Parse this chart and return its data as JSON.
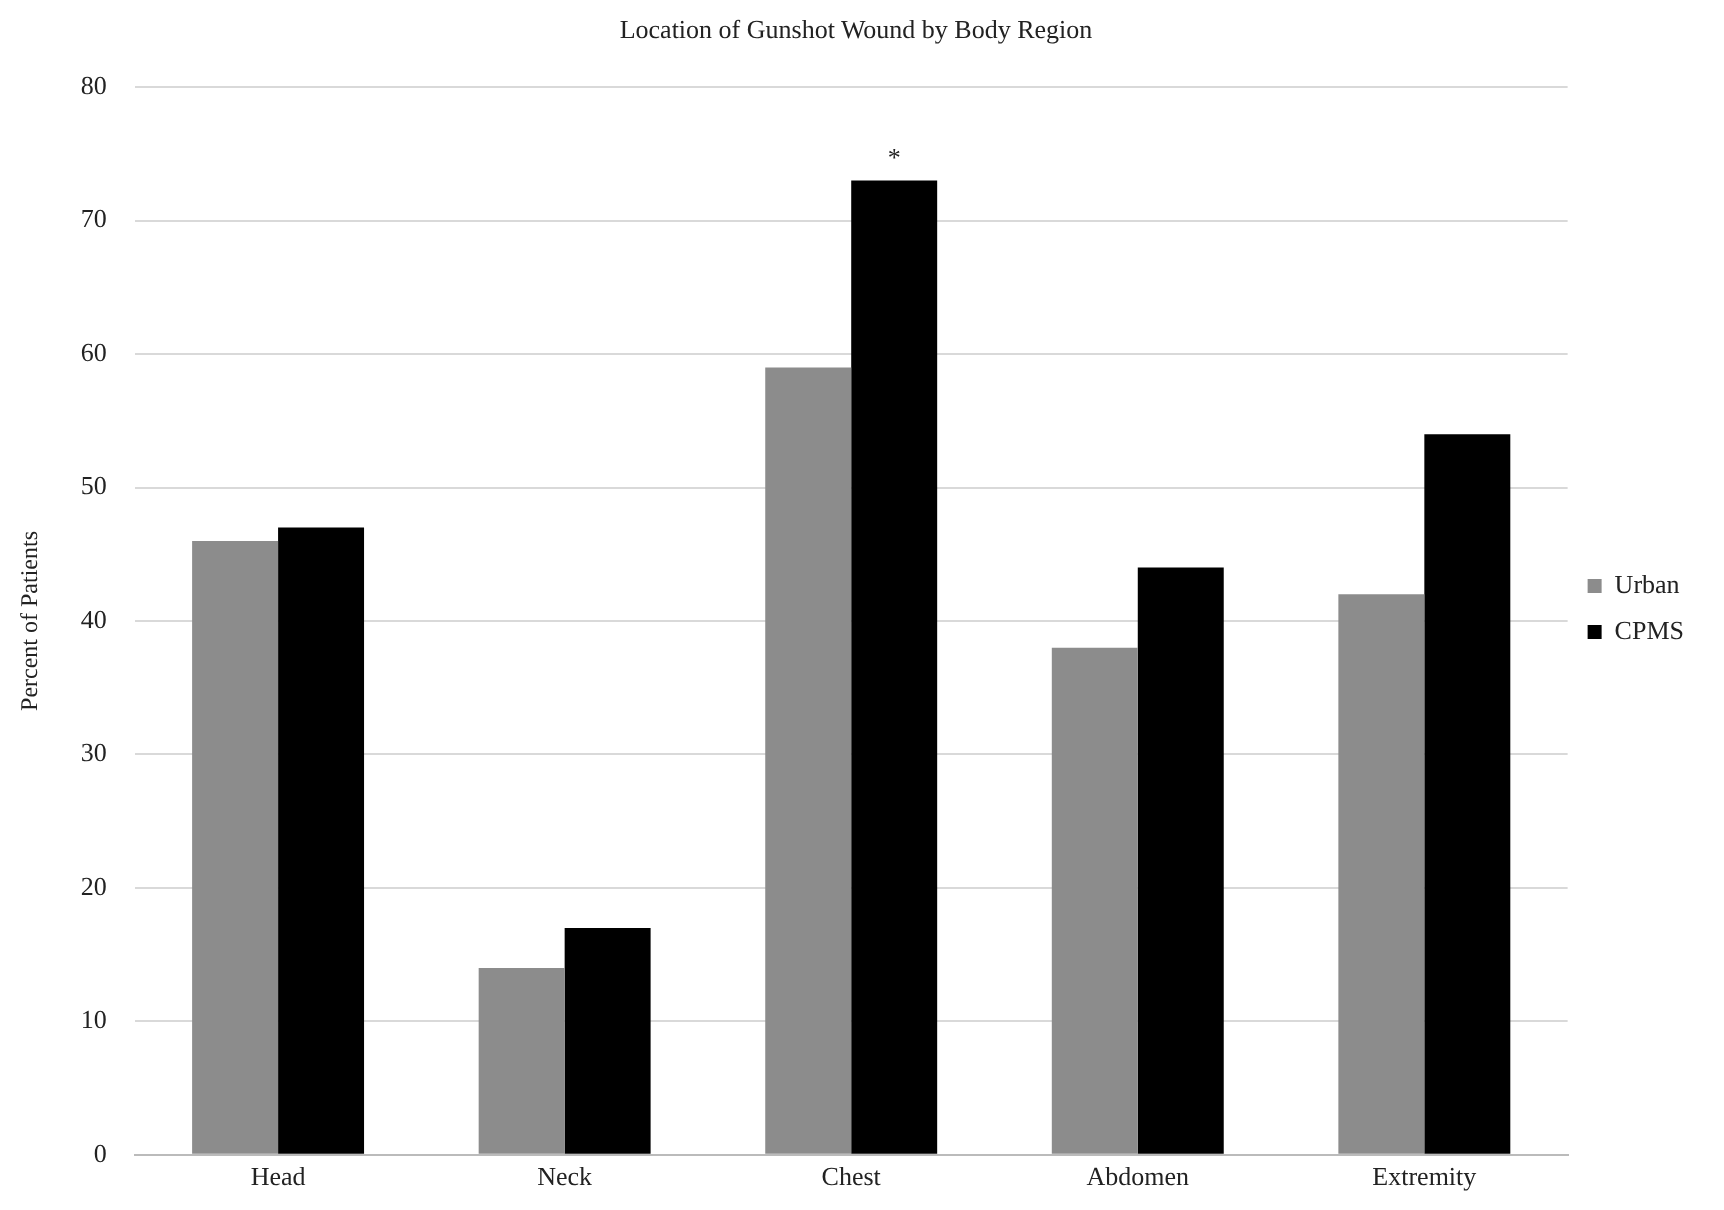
{
  "chart_data": {
    "type": "bar",
    "title": "Location of Gunshot Wound by Body Region",
    "ylabel": "Percent of Patients",
    "categories": [
      "Head",
      "Neck",
      "Chest",
      "Abdomen",
      "Extremity"
    ],
    "series": [
      {
        "name": "Urban",
        "color": "#8c8c8c",
        "values": [
          46,
          14,
          59,
          38,
          42
        ]
      },
      {
        "name": "CPMS",
        "color": "#000000",
        "values": [
          47,
          17,
          73,
          44,
          54
        ]
      }
    ],
    "ylim": [
      0,
      80
    ],
    "yticks": [
      0,
      10,
      20,
      30,
      40,
      50,
      60,
      70,
      80
    ],
    "grid": "y",
    "legend": "right",
    "annotations": [
      {
        "text": "*",
        "x": "Chest",
        "y": 73
      }
    ]
  }
}
